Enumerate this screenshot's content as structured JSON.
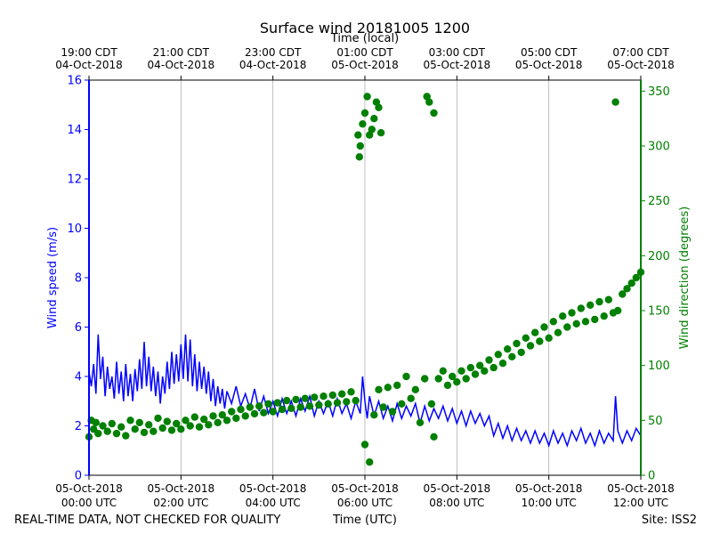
{
  "chart_data": {
    "type": "line",
    "title": "Surface wind 20181005 1200",
    "top_axis_label": "Time (local)",
    "xlabel": "Time (UTC)",
    "ylabel_left": "Wind speed (m/s)",
    "ylabel_right": "Wind direction (degrees)",
    "footer_left": "REAL-TIME DATA, NOT CHECKED FOR QUALITY",
    "footer_right": "Site: ISS2",
    "x_range_hours": [
      0,
      12
    ],
    "ylim_left": [
      0,
      16
    ],
    "ylim_right": [
      0,
      360
    ],
    "left_ticks": [
      "0",
      "2",
      "4",
      "6",
      "8",
      "10",
      "12",
      "14",
      "16"
    ],
    "right_ticks": [
      "0",
      "50",
      "100",
      "150",
      "200",
      "250",
      "300",
      "350"
    ],
    "grid": "vertical",
    "bottom_ticks": [
      {
        "hour": 0,
        "line1": "05-Oct-2018",
        "line2": "00:00 UTC"
      },
      {
        "hour": 2,
        "line1": "05-Oct-2018",
        "line2": "02:00 UTC"
      },
      {
        "hour": 4,
        "line1": "05-Oct-2018",
        "line2": "04:00 UTC"
      },
      {
        "hour": 6,
        "line1": "05-Oct-2018",
        "line2": "06:00 UTC"
      },
      {
        "hour": 8,
        "line1": "05-Oct-2018",
        "line2": "08:00 UTC"
      },
      {
        "hour": 10,
        "line1": "05-Oct-2018",
        "line2": "10:00 UTC"
      },
      {
        "hour": 12,
        "line1": "05-Oct-2018",
        "line2": "12:00 UTC"
      }
    ],
    "top_ticks": [
      {
        "hour": 0,
        "line1": "19:00 CDT",
        "line2": "04-Oct-2018"
      },
      {
        "hour": 2,
        "line1": "21:00 CDT",
        "line2": "04-Oct-2018"
      },
      {
        "hour": 4,
        "line1": "23:00 CDT",
        "line2": "04-Oct-2018"
      },
      {
        "hour": 6,
        "line1": "01:00 CDT",
        "line2": "05-Oct-2018"
      },
      {
        "hour": 8,
        "line1": "03:00 CDT",
        "line2": "05-Oct-2018"
      },
      {
        "hour": 10,
        "line1": "05:00 CDT",
        "line2": "05-Oct-2018"
      },
      {
        "hour": 12,
        "line1": "07:00 CDT",
        "line2": "05-Oct-2018"
      }
    ],
    "series": [
      {
        "name": "Wind speed",
        "axis": "left",
        "style": "line",
        "color": "#0000ff",
        "points": [
          [
            0,
            4.2
          ],
          [
            0.05,
            3.6
          ],
          [
            0.1,
            4.5
          ],
          [
            0.15,
            3.3
          ],
          [
            0.2,
            5.7
          ],
          [
            0.25,
            3.9
          ],
          [
            0.3,
            4.8
          ],
          [
            0.35,
            3.2
          ],
          [
            0.4,
            4.4
          ],
          [
            0.45,
            3.5
          ],
          [
            0.5,
            4.0
          ],
          [
            0.55,
            3.1
          ],
          [
            0.6,
            4.6
          ],
          [
            0.65,
            3.3
          ],
          [
            0.7,
            4.2
          ],
          [
            0.75,
            3.0
          ],
          [
            0.8,
            4.5
          ],
          [
            0.85,
            3.2
          ],
          [
            0.9,
            4.1
          ],
          [
            0.95,
            3.0
          ],
          [
            1.0,
            4.3
          ],
          [
            1.05,
            3.4
          ],
          [
            1.1,
            4.7
          ],
          [
            1.15,
            3.5
          ],
          [
            1.2,
            5.4
          ],
          [
            1.25,
            3.6
          ],
          [
            1.3,
            4.8
          ],
          [
            1.35,
            3.4
          ],
          [
            1.4,
            4.4
          ],
          [
            1.45,
            3.2
          ],
          [
            1.5,
            4.2
          ],
          [
            1.55,
            2.9
          ],
          [
            1.6,
            4.0
          ],
          [
            1.65,
            3.3
          ],
          [
            1.7,
            4.6
          ],
          [
            1.75,
            3.5
          ],
          [
            1.8,
            5.0
          ],
          [
            1.85,
            3.7
          ],
          [
            1.9,
            4.9
          ],
          [
            1.95,
            3.8
          ],
          [
            2.0,
            5.3
          ],
          [
            2.05,
            3.9
          ],
          [
            2.1,
            5.7
          ],
          [
            2.15,
            3.8
          ],
          [
            2.2,
            5.5
          ],
          [
            2.25,
            3.6
          ],
          [
            2.3,
            4.9
          ],
          [
            2.35,
            3.4
          ],
          [
            2.4,
            4.6
          ],
          [
            2.45,
            3.5
          ],
          [
            2.5,
            4.4
          ],
          [
            2.55,
            3.3
          ],
          [
            2.6,
            4.2
          ],
          [
            2.65,
            3.0
          ],
          [
            2.7,
            3.9
          ],
          [
            2.75,
            2.8
          ],
          [
            2.8,
            3.6
          ],
          [
            2.85,
            2.9
          ],
          [
            2.9,
            3.5
          ],
          [
            2.95,
            2.7
          ],
          [
            3.0,
            3.4
          ],
          [
            3.1,
            2.9
          ],
          [
            3.2,
            3.6
          ],
          [
            3.3,
            2.8
          ],
          [
            3.4,
            3.3
          ],
          [
            3.5,
            2.7
          ],
          [
            3.6,
            3.5
          ],
          [
            3.7,
            2.6
          ],
          [
            3.8,
            3.2
          ],
          [
            3.9,
            2.5
          ],
          [
            4.0,
            3.0
          ],
          [
            4.1,
            2.4
          ],
          [
            4.2,
            3.1
          ],
          [
            4.3,
            2.5
          ],
          [
            4.4,
            3.0
          ],
          [
            4.5,
            2.4
          ],
          [
            4.6,
            3.1
          ],
          [
            4.7,
            2.6
          ],
          [
            4.8,
            3.2
          ],
          [
            4.9,
            2.4
          ],
          [
            5.0,
            3.0
          ],
          [
            5.1,
            2.5
          ],
          [
            5.2,
            3.0
          ],
          [
            5.3,
            2.4
          ],
          [
            5.4,
            3.1
          ],
          [
            5.5,
            2.5
          ],
          [
            5.6,
            2.9
          ],
          [
            5.7,
            2.3
          ],
          [
            5.8,
            3.0
          ],
          [
            5.9,
            2.5
          ],
          [
            5.95,
            4.0
          ],
          [
            6.0,
            3.0
          ],
          [
            6.05,
            2.3
          ],
          [
            6.1,
            3.2
          ],
          [
            6.2,
            2.4
          ],
          [
            6.3,
            3.0
          ],
          [
            6.4,
            2.3
          ],
          [
            6.5,
            2.8
          ],
          [
            6.6,
            2.2
          ],
          [
            6.7,
            2.9
          ],
          [
            6.8,
            2.3
          ],
          [
            6.9,
            2.8
          ],
          [
            7.0,
            2.4
          ],
          [
            7.1,
            2.9
          ],
          [
            7.2,
            2.1
          ],
          [
            7.3,
            2.8
          ],
          [
            7.4,
            2.2
          ],
          [
            7.5,
            2.7
          ],
          [
            7.6,
            2.3
          ],
          [
            7.7,
            2.8
          ],
          [
            7.8,
            2.2
          ],
          [
            7.9,
            2.7
          ],
          [
            8.0,
            2.1
          ],
          [
            8.1,
            2.6
          ],
          [
            8.2,
            2.0
          ],
          [
            8.3,
            2.6
          ],
          [
            8.4,
            2.1
          ],
          [
            8.5,
            2.5
          ],
          [
            8.6,
            2.0
          ],
          [
            8.7,
            2.4
          ],
          [
            8.8,
            1.6
          ],
          [
            8.9,
            2.1
          ],
          [
            9.0,
            1.5
          ],
          [
            9.1,
            2.0
          ],
          [
            9.2,
            1.4
          ],
          [
            9.3,
            1.9
          ],
          [
            9.4,
            1.4
          ],
          [
            9.5,
            1.8
          ],
          [
            9.6,
            1.3
          ],
          [
            9.7,
            1.8
          ],
          [
            9.8,
            1.3
          ],
          [
            9.9,
            1.7
          ],
          [
            10.0,
            1.2
          ],
          [
            10.1,
            1.8
          ],
          [
            10.2,
            1.3
          ],
          [
            10.3,
            1.7
          ],
          [
            10.4,
            1.2
          ],
          [
            10.5,
            1.8
          ],
          [
            10.6,
            1.4
          ],
          [
            10.7,
            1.9
          ],
          [
            10.8,
            1.3
          ],
          [
            10.9,
            1.7
          ],
          [
            11.0,
            1.2
          ],
          [
            11.1,
            1.8
          ],
          [
            11.2,
            1.3
          ],
          [
            11.3,
            1.7
          ],
          [
            11.4,
            1.4
          ],
          [
            11.45,
            3.2
          ],
          [
            11.5,
            1.8
          ],
          [
            11.6,
            1.3
          ],
          [
            11.7,
            1.8
          ],
          [
            11.8,
            1.4
          ],
          [
            11.9,
            1.9
          ],
          [
            12.0,
            1.6
          ]
        ]
      },
      {
        "name": "Wind direction",
        "axis": "right",
        "style": "markers",
        "color": "#008000",
        "points": [
          [
            0,
            35
          ],
          [
            0.05,
            50
          ],
          [
            0.1,
            42
          ],
          [
            0.15,
            48
          ],
          [
            0.2,
            38
          ],
          [
            0.3,
            45
          ],
          [
            0.4,
            40
          ],
          [
            0.5,
            47
          ],
          [
            0.6,
            38
          ],
          [
            0.7,
            44
          ],
          [
            0.8,
            36
          ],
          [
            0.9,
            50
          ],
          [
            1.0,
            42
          ],
          [
            1.1,
            48
          ],
          [
            1.2,
            39
          ],
          [
            1.3,
            46
          ],
          [
            1.4,
            40
          ],
          [
            1.5,
            52
          ],
          [
            1.6,
            43
          ],
          [
            1.7,
            49
          ],
          [
            1.8,
            41
          ],
          [
            1.9,
            47
          ],
          [
            2.0,
            42
          ],
          [
            2.1,
            50
          ],
          [
            2.2,
            45
          ],
          [
            2.3,
            53
          ],
          [
            2.4,
            44
          ],
          [
            2.5,
            51
          ],
          [
            2.6,
            46
          ],
          [
            2.7,
            54
          ],
          [
            2.8,
            48
          ],
          [
            2.9,
            55
          ],
          [
            3.0,
            50
          ],
          [
            3.1,
            58
          ],
          [
            3.2,
            52
          ],
          [
            3.3,
            60
          ],
          [
            3.4,
            54
          ],
          [
            3.5,
            62
          ],
          [
            3.6,
            56
          ],
          [
            3.7,
            63
          ],
          [
            3.8,
            57
          ],
          [
            3.9,
            65
          ],
          [
            4.0,
            58
          ],
          [
            4.1,
            66
          ],
          [
            4.2,
            60
          ],
          [
            4.3,
            68
          ],
          [
            4.4,
            61
          ],
          [
            4.5,
            69
          ],
          [
            4.6,
            62
          ],
          [
            4.7,
            70
          ],
          [
            4.8,
            63
          ],
          [
            4.9,
            71
          ],
          [
            5.0,
            64
          ],
          [
            5.1,
            72
          ],
          [
            5.2,
            65
          ],
          [
            5.3,
            73
          ],
          [
            5.4,
            66
          ],
          [
            5.5,
            74
          ],
          [
            5.6,
            67
          ],
          [
            5.7,
            76
          ],
          [
            5.8,
            68
          ],
          [
            5.85,
            310
          ],
          [
            5.88,
            290
          ],
          [
            5.9,
            300
          ],
          [
            5.95,
            320
          ],
          [
            6.0,
            330
          ],
          [
            6.05,
            345
          ],
          [
            6.1,
            310
          ],
          [
            6.15,
            315
          ],
          [
            6.2,
            325
          ],
          [
            6.25,
            340
          ],
          [
            6.3,
            335
          ],
          [
            6.35,
            312
          ],
          [
            6.0,
            28
          ],
          [
            6.1,
            12
          ],
          [
            6.2,
            55
          ],
          [
            6.3,
            78
          ],
          [
            6.4,
            62
          ],
          [
            6.5,
            80
          ],
          [
            6.6,
            58
          ],
          [
            6.7,
            82
          ],
          [
            6.8,
            65
          ],
          [
            6.9,
            90
          ],
          [
            7.0,
            70
          ],
          [
            7.1,
            78
          ],
          [
            7.2,
            48
          ],
          [
            7.3,
            88
          ],
          [
            7.35,
            345
          ],
          [
            7.4,
            340
          ],
          [
            7.5,
            330
          ],
          [
            7.45,
            65
          ],
          [
            7.5,
            35
          ],
          [
            7.6,
            88
          ],
          [
            7.7,
            95
          ],
          [
            7.8,
            82
          ],
          [
            7.9,
            90
          ],
          [
            8.0,
            85
          ],
          [
            8.1,
            95
          ],
          [
            8.2,
            88
          ],
          [
            8.3,
            98
          ],
          [
            8.4,
            92
          ],
          [
            8.5,
            100
          ],
          [
            8.6,
            95
          ],
          [
            8.7,
            105
          ],
          [
            8.8,
            98
          ],
          [
            8.9,
            110
          ],
          [
            9.0,
            102
          ],
          [
            9.1,
            115
          ],
          [
            9.2,
            108
          ],
          [
            9.3,
            120
          ],
          [
            9.4,
            112
          ],
          [
            9.5,
            125
          ],
          [
            9.6,
            118
          ],
          [
            9.7,
            130
          ],
          [
            9.8,
            122
          ],
          [
            9.9,
            135
          ],
          [
            10.0,
            125
          ],
          [
            10.1,
            140
          ],
          [
            10.2,
            130
          ],
          [
            10.3,
            145
          ],
          [
            10.4,
            135
          ],
          [
            10.5,
            148
          ],
          [
            10.6,
            138
          ],
          [
            10.7,
            152
          ],
          [
            10.8,
            140
          ],
          [
            10.9,
            155
          ],
          [
            11.0,
            142
          ],
          [
            11.1,
            158
          ],
          [
            11.2,
            145
          ],
          [
            11.3,
            160
          ],
          [
            11.4,
            148
          ],
          [
            11.45,
            340
          ],
          [
            11.5,
            150
          ],
          [
            11.6,
            165
          ],
          [
            11.7,
            170
          ],
          [
            11.8,
            175
          ],
          [
            11.9,
            180
          ],
          [
            12.0,
            185
          ]
        ]
      }
    ]
  }
}
